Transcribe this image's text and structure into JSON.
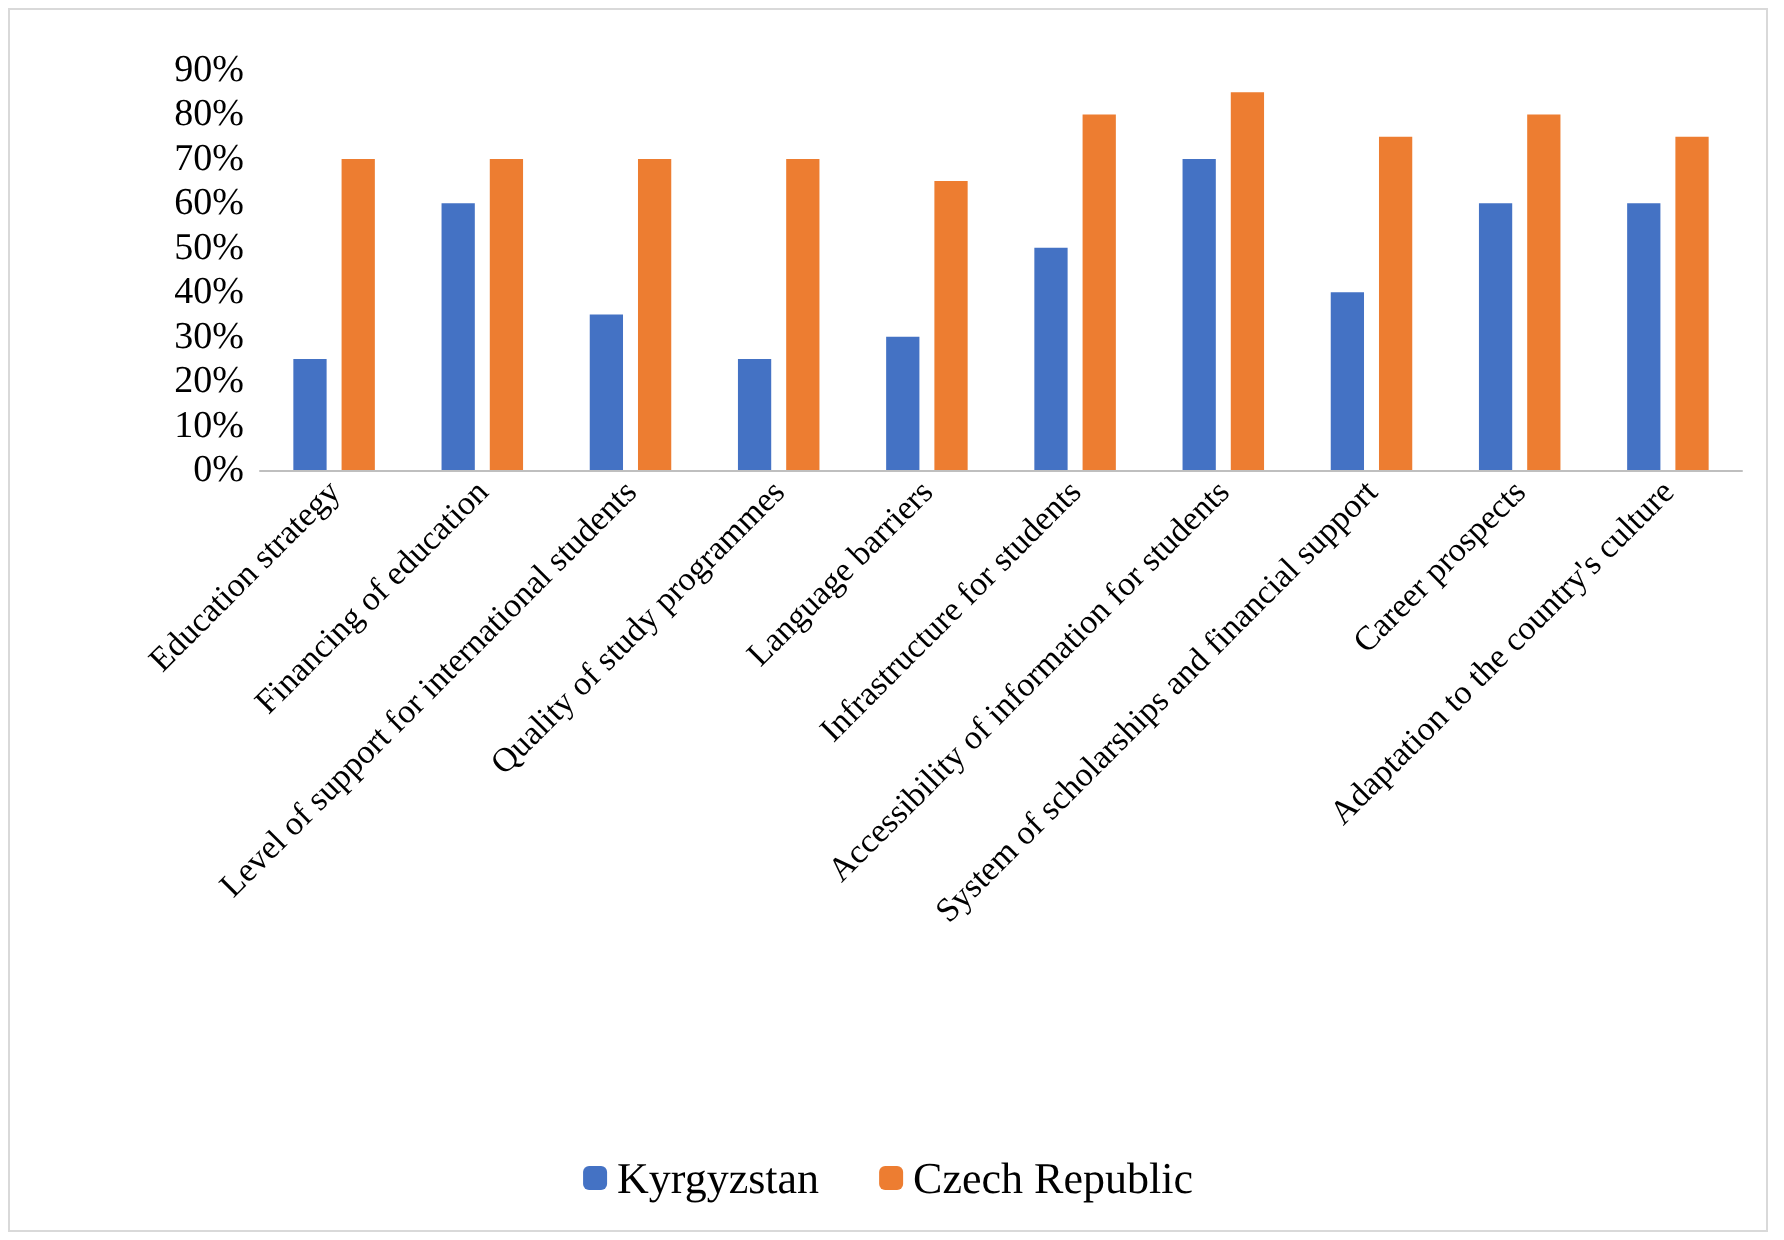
{
  "chart_data": {
    "type": "bar",
    "categories": [
      "Education strategy",
      "Financing of education",
      "Level of support for international students",
      "Quality of study programmes",
      "Language barriers",
      "Infrastructure for students",
      "Accessibility of information for students",
      "System of scholarships and financial support",
      "Career prospects",
      "Adaptation to the country's culture"
    ],
    "series": [
      {
        "name": "Kyrgyzstan",
        "color": "#4472c4",
        "values": [
          25,
          60,
          35,
          25,
          30,
          50,
          70,
          40,
          60,
          60
        ]
      },
      {
        "name": "Czech Republic",
        "color": "#ed7d31",
        "values": [
          70,
          70,
          70,
          70,
          65,
          80,
          85,
          75,
          80,
          75
        ]
      }
    ],
    "ylim": [
      0,
      90
    ],
    "yticks": [
      {
        "value": 0,
        "label": "0%"
      },
      {
        "value": 10,
        "label": "10%"
      },
      {
        "value": 20,
        "label": "20%"
      },
      {
        "value": 30,
        "label": "30%"
      },
      {
        "value": 40,
        "label": "40%"
      },
      {
        "value": 50,
        "label": "50%"
      },
      {
        "value": 60,
        "label": "60%"
      },
      {
        "value": 70,
        "label": "70%"
      },
      {
        "value": 80,
        "label": "80%"
      },
      {
        "value": 90,
        "label": "90%"
      }
    ],
    "grid": false,
    "legend": "bottom"
  }
}
